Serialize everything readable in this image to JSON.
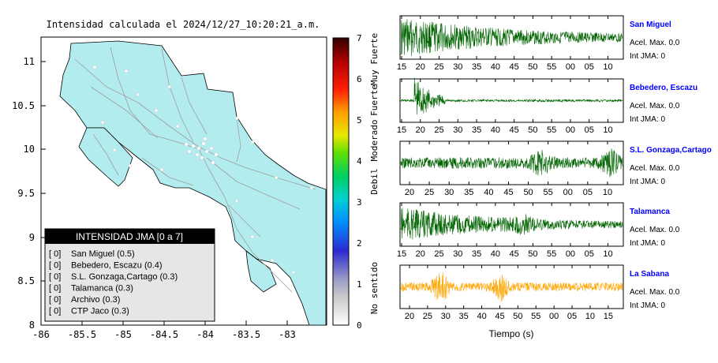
{
  "map": {
    "title": "Intensidad calculada el 2024/12/27_10:20:21_a.m.",
    "x_ticks": [
      "-86",
      "-85.5",
      "-85",
      "-84.5",
      "-84",
      "-83.5",
      "-83"
    ],
    "y_ticks": [
      "11",
      "10.5",
      "10",
      "9.5",
      "9",
      "8.5",
      "8"
    ],
    "colors": {
      "land": "#b3ecee",
      "sea": "#ffffff",
      "roads": "#a9a9a9",
      "border": "#000000"
    },
    "legend": {
      "header": "INTENSIDAD JMA [0 a 7]",
      "items": [
        {
          "code": "[ 0]",
          "label": "San Miguel (0.5)"
        },
        {
          "code": "[ 0]",
          "label": "Bebedero, Escazu (0.4)"
        },
        {
          "code": "[ 0]",
          "label": "S.L. Gonzaga,Cartago (0.3)"
        },
        {
          "code": "[ 0]",
          "label": "Talamanca (0.3)"
        },
        {
          "code": "[ 0]",
          "label": "Archivo (0.3)"
        },
        {
          "code": "[ 0]",
          "label": "CTP Jaco (0.3)"
        }
      ]
    }
  },
  "colorbar": {
    "ticks": [
      "7",
      "6",
      "5",
      "4",
      "3",
      "2",
      "1",
      "0"
    ],
    "labels": [
      "Muy Fuerte",
      "Fuerte",
      "Moderado",
      "Debil",
      "No sentido"
    ]
  },
  "panels": [
    {
      "station": "San Miguel",
      "acel": "Acel. Max. 0.0",
      "int": "Int JMA: 0",
      "color": "#006400",
      "ticks": [
        "15",
        "20",
        "25",
        "30",
        "35",
        "40",
        "45",
        "50",
        "55",
        "00",
        "05",
        "10"
      ]
    },
    {
      "station": "Bebedero, Escazu",
      "acel": "Acel. Max. 0.0",
      "int": "Int JMA: 0",
      "color": "#006400",
      "ticks": [
        "15",
        "20",
        "25",
        "30",
        "35",
        "40",
        "45",
        "50",
        "55",
        "00",
        "05",
        "10"
      ]
    },
    {
      "station": "S.L. Gonzaga,Cartago",
      "acel": "Acel. Max. 0.0",
      "int": "Int JMA: 0",
      "color": "#006400",
      "ticks": [
        "20",
        "25",
        "30",
        "35",
        "40",
        "45",
        "50",
        "55",
        "00",
        "05",
        "10"
      ]
    },
    {
      "station": "Talamanca",
      "acel": "Acel. Max. 0.0",
      "int": "Int JMA: 0",
      "color": "#006400",
      "ticks": [
        "15",
        "20",
        "25",
        "30",
        "35",
        "40",
        "45",
        "50",
        "55",
        "00",
        "05",
        "10"
      ]
    },
    {
      "station": "La Sabana",
      "acel": "Acel. Max. 0.0",
      "int": "Int JMA: 0",
      "color": "#ffa500",
      "ticks": [
        "20",
        "25",
        "30",
        "35",
        "40",
        "45",
        "50",
        "55",
        "00",
        "05",
        "10",
        "15"
      ]
    }
  ],
  "xlabel": "Tiempo (s)",
  "chart_data": [
    {
      "type": "scatter",
      "title": "Intensidad calculada el 2024/12/27_10:20:21_a.m.",
      "xlabel": "",
      "ylabel": "",
      "xlim": [
        -86,
        -82.6
      ],
      "ylim": [
        8,
        11.3
      ],
      "colorbar": {
        "range": [
          0,
          7
        ],
        "labels": [
          "No sentido",
          "Debil",
          "Moderado",
          "Fuerte",
          "Muy Fuerte"
        ]
      },
      "legend": {
        "title": "INTENSIDAD JMA [0 a 7]",
        "placement": "bottom-left",
        "entries": [
          {
            "name": "San Miguel",
            "value": 0.5,
            "class": 0
          },
          {
            "name": "Bebedero, Escazu",
            "value": 0.4,
            "class": 0
          },
          {
            "name": "S.L. Gonzaga,Cartago",
            "value": 0.3,
            "class": 0
          },
          {
            "name": "Talamanca",
            "value": 0.3,
            "class": 0
          },
          {
            "name": "Archivo",
            "value": 0.3,
            "class": 0
          },
          {
            "name": "CTP Jaco",
            "value": 0.3,
            "class": 0
          }
        ]
      }
    },
    {
      "type": "line",
      "xlabel": "Tiempo (s)",
      "series": [
        {
          "name": "San Miguel",
          "acel_max": 0.0,
          "int_jma": 0
        },
        {
          "name": "Bebedero, Escazu",
          "acel_max": 0.0,
          "int_jma": 0
        },
        {
          "name": "S.L. Gonzaga,Cartago",
          "acel_max": 0.0,
          "int_jma": 0
        },
        {
          "name": "Talamanca",
          "acel_max": 0.0,
          "int_jma": 0
        },
        {
          "name": "La Sabana",
          "acel_max": 0.0,
          "int_jma": 0
        }
      ]
    }
  ]
}
